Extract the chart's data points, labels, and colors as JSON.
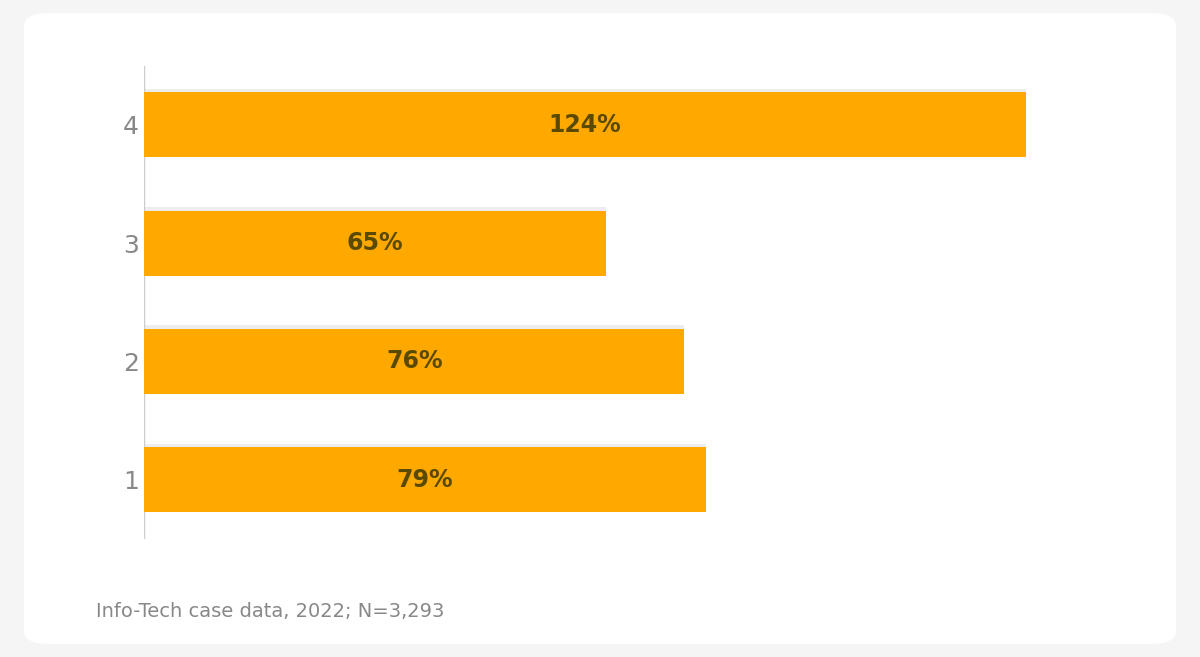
{
  "categories": [
    "1",
    "2",
    "3",
    "4"
  ],
  "values": [
    79,
    76,
    65,
    124
  ],
  "labels": [
    "79%",
    "76%",
    "65%",
    "124%"
  ],
  "bar_color": "#FFA800",
  "label_color": "#5a4a00",
  "tick_color": "#888888",
  "background_color": "#f5f5f5",
  "card_color": "#ffffff",
  "footnote": "Info-Tech case data, 2022; N=3,293",
  "footnote_color": "#888888",
  "xlim": [
    0,
    135
  ],
  "bar_height": 0.55,
  "label_fontsize": 17,
  "tick_fontsize": 18,
  "footnote_fontsize": 14
}
